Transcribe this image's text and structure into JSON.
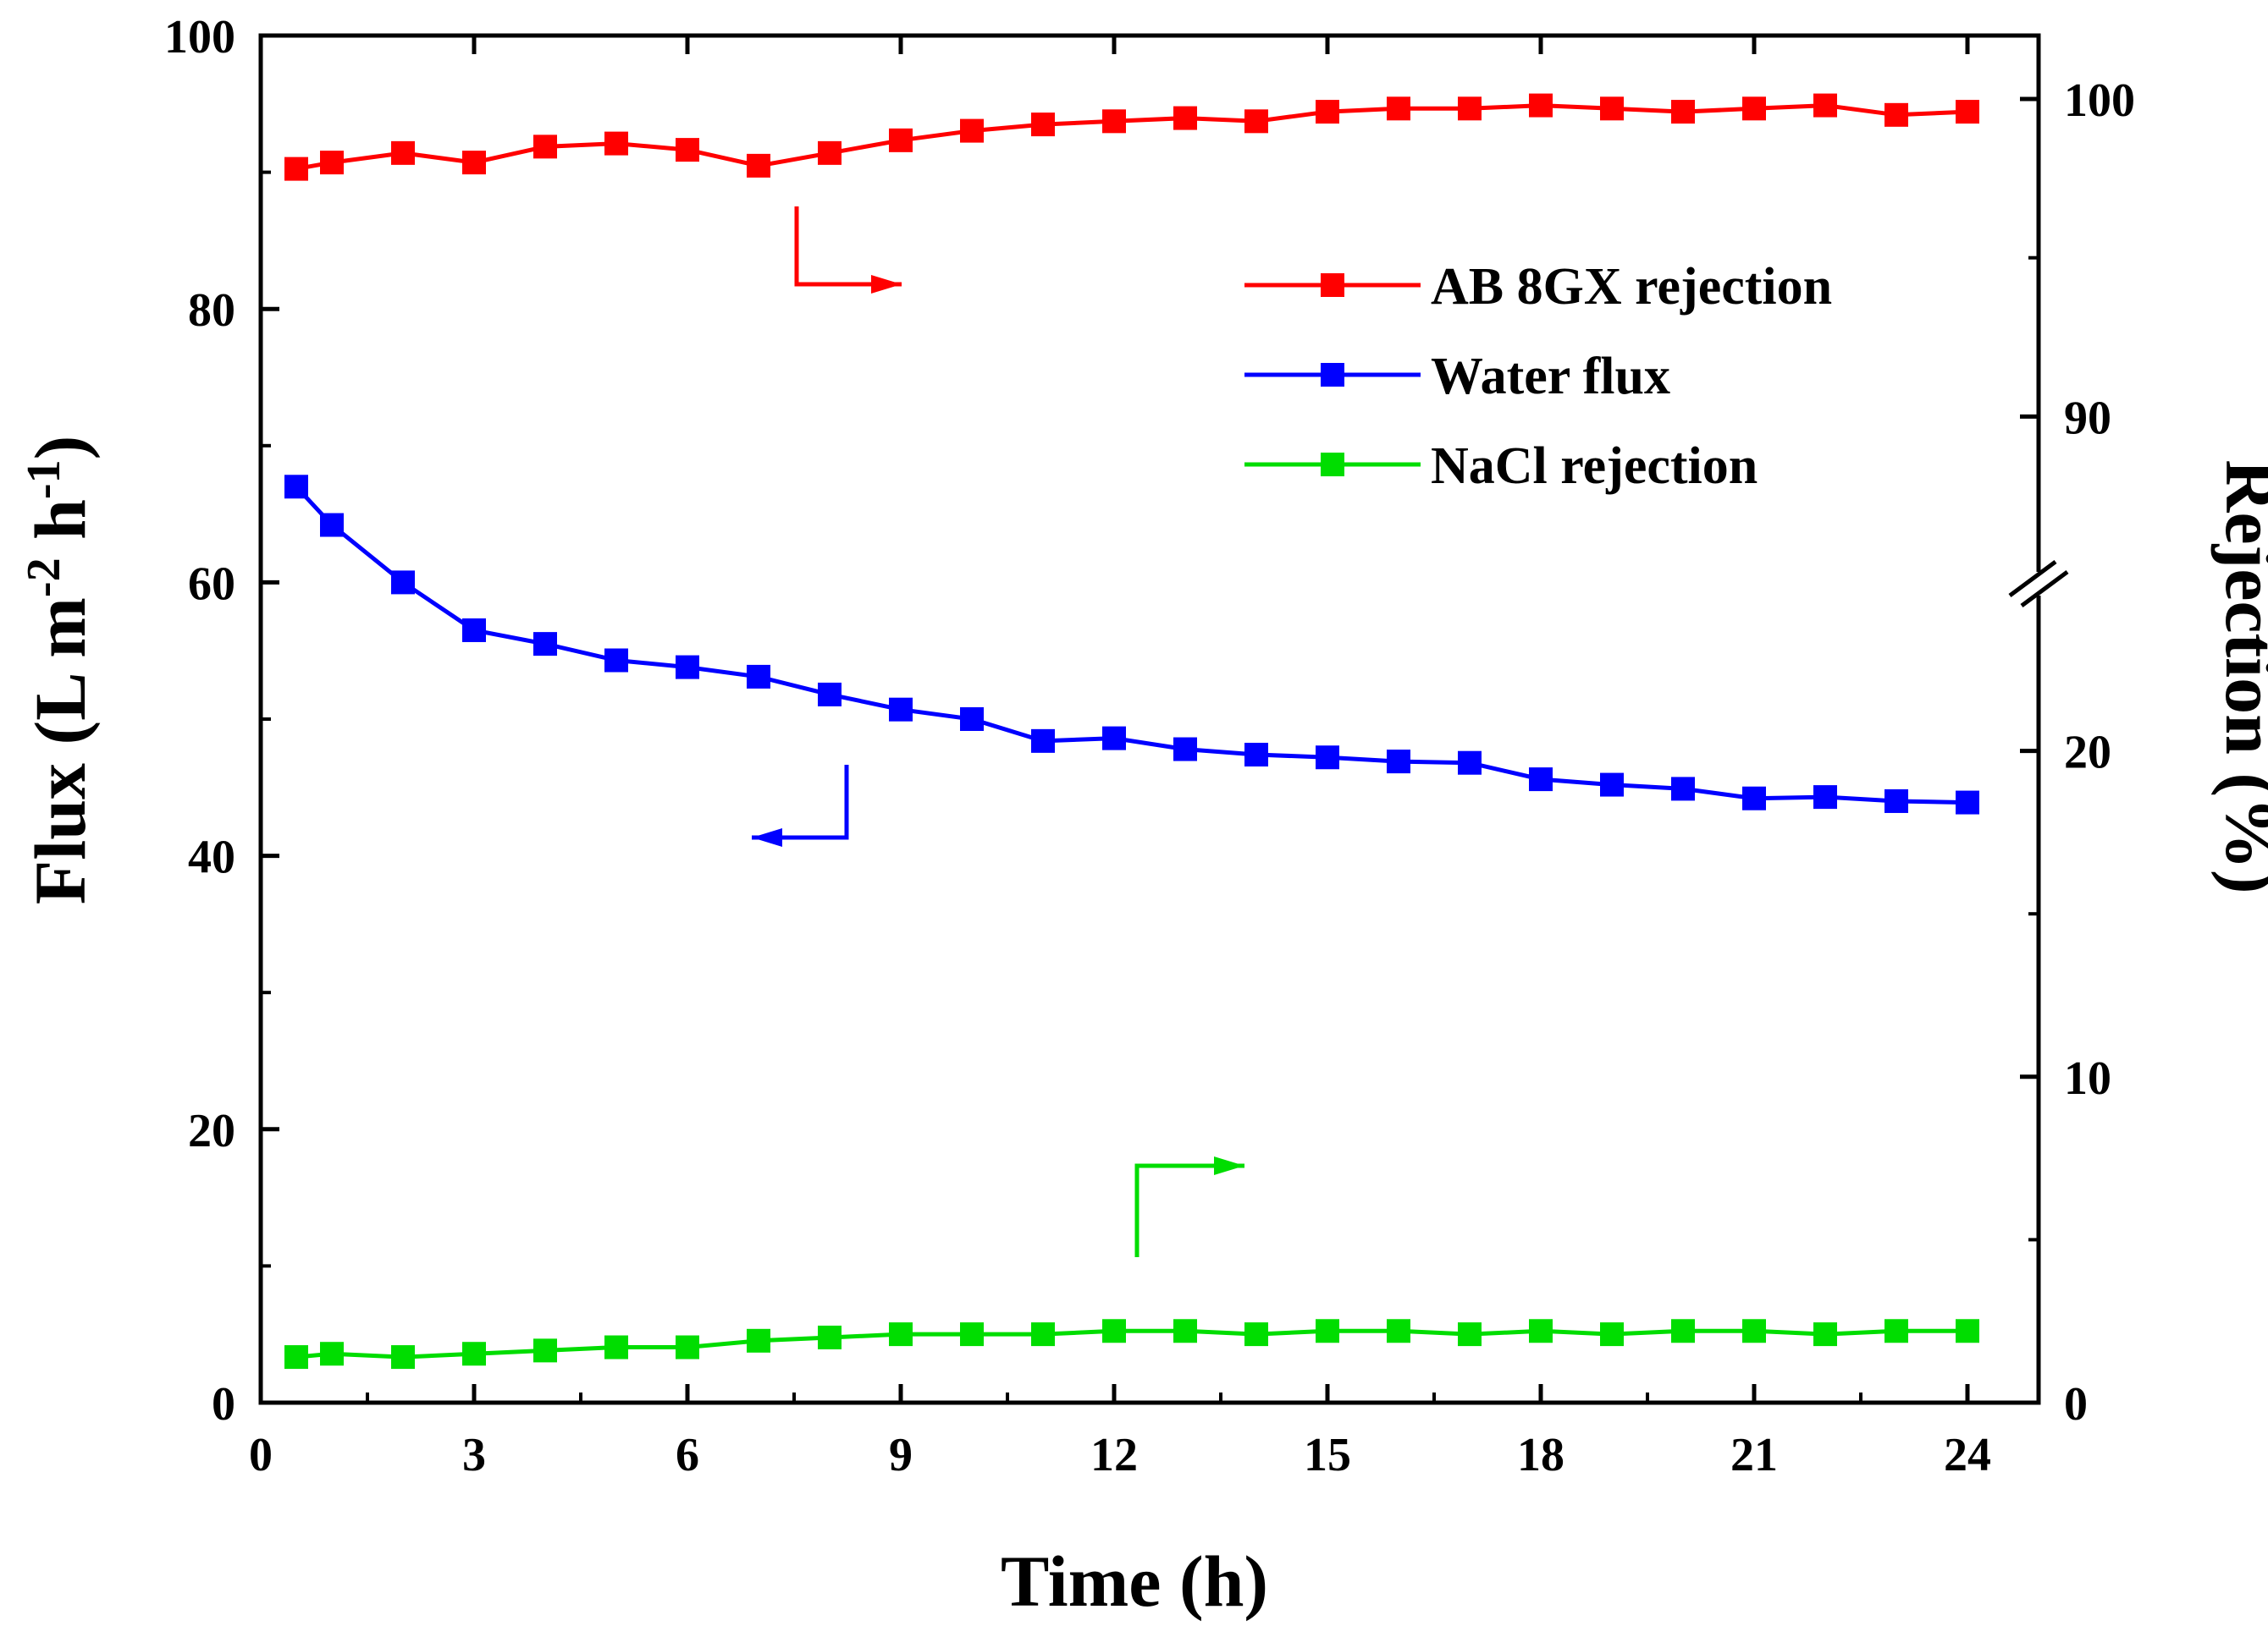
{
  "chart_data": {
    "type": "line",
    "xlabel": "Time (h)",
    "ylabel_left": {
      "base": "Flux (L m",
      "sup1": "-2",
      "mid": " h",
      "sup2": "-1",
      "end": ")"
    },
    "ylabel_right": "Rejection (%)",
    "xlim": [
      0,
      25
    ],
    "ylim_left": [
      0,
      100
    ],
    "ylim_right_lower": [
      0,
      25
    ],
    "ylim_right_upper": [
      85,
      102
    ],
    "right_axis_break": "//",
    "x_ticks": [
      "0",
      "3",
      "6",
      "9",
      "12",
      "15",
      "18",
      "21",
      "24"
    ],
    "y_left_ticks": [
      "0",
      "20",
      "40",
      "60",
      "80",
      "100"
    ],
    "y_right_ticks": [
      "0",
      "10",
      "20",
      "90",
      "100"
    ],
    "legend_position": "top-right",
    "x": [
      0.5,
      1,
      2,
      3,
      4,
      5,
      6,
      7,
      8,
      9,
      10,
      11,
      12,
      13,
      14,
      15,
      16,
      17,
      18,
      19,
      20,
      21,
      22,
      23,
      24
    ],
    "series": [
      {
        "name": "AB 8GX rejection",
        "axis": "right",
        "color": "#ff0000",
        "values": [
          97.8,
          98.0,
          98.3,
          98.0,
          98.5,
          98.6,
          98.4,
          97.9,
          98.3,
          98.7,
          99.0,
          99.2,
          99.3,
          99.4,
          99.3,
          99.6,
          99.7,
          99.7,
          99.8,
          99.7,
          99.6,
          99.7,
          99.8,
          99.5,
          99.6
        ]
      },
      {
        "name": "Water flux",
        "axis": "left",
        "color": "#0000ff",
        "values": [
          67.0,
          64.2,
          60.0,
          56.5,
          55.5,
          54.3,
          53.8,
          53.1,
          51.8,
          50.7,
          50.0,
          48.4,
          48.6,
          47.8,
          47.4,
          47.2,
          46.9,
          46.8,
          45.6,
          45.2,
          44.9,
          44.2,
          44.3,
          44.0,
          43.9
        ]
      },
      {
        "name": "NaCl rejection",
        "axis": "right",
        "color": "#00dd00",
        "values": [
          1.4,
          1.5,
          1.4,
          1.5,
          1.6,
          1.7,
          1.7,
          1.9,
          2.0,
          2.1,
          2.1,
          2.1,
          2.2,
          2.2,
          2.1,
          2.2,
          2.2,
          2.1,
          2.2,
          2.1,
          2.2,
          2.2,
          2.1,
          2.2,
          2.2
        ]
      }
    ],
    "annotations": [
      {
        "type": "axis-pointer-arrow",
        "series": "AB 8GX rejection",
        "points_to": "right axis"
      },
      {
        "type": "axis-pointer-arrow",
        "series": "Water flux",
        "points_to": "left axis"
      },
      {
        "type": "axis-pointer-arrow",
        "series": "NaCl rejection",
        "points_to": "right axis"
      }
    ]
  }
}
